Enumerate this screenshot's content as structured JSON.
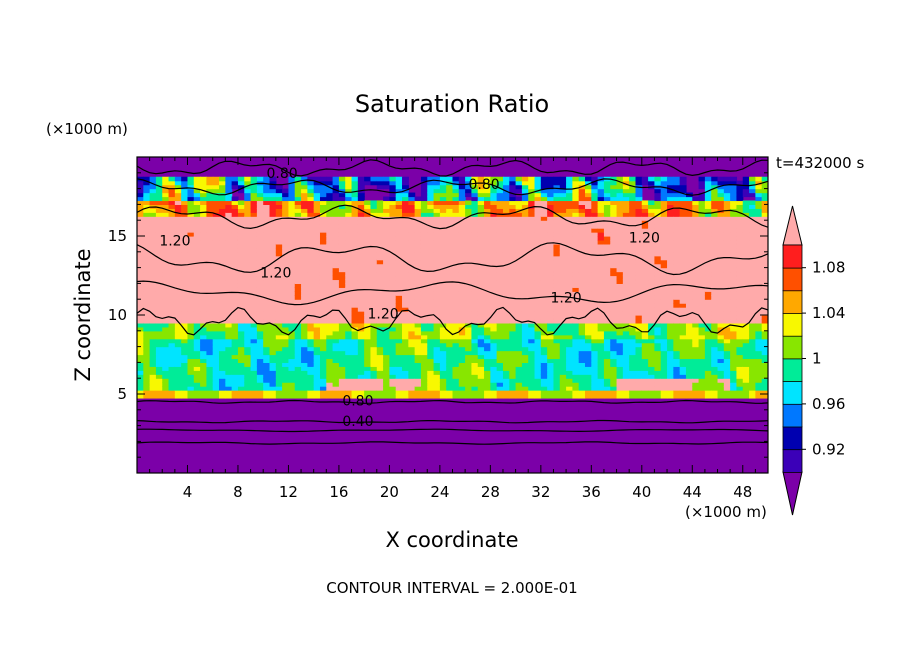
{
  "chart_data": {
    "type": "heatmap",
    "title": "Saturation Ratio",
    "xlabel": "X coordinate",
    "ylabel": "Z coordinate",
    "x_unit": "(×1000 m)",
    "y_unit": "(×1000 m)",
    "time_label": "t=432000 s",
    "footer": "CONTOUR INTERVAL = 2.000E-01",
    "xlim": [
      0,
      50
    ],
    "ylim": [
      0,
      20
    ],
    "x_ticks": [
      4,
      8,
      12,
      16,
      20,
      24,
      28,
      32,
      36,
      40,
      44,
      48
    ],
    "y_ticks": [
      5,
      10,
      15
    ],
    "colorbar": {
      "labels": [
        "0.92",
        "0.96",
        "1",
        "1.04",
        "1.08"
      ],
      "label_values": [
        0.92,
        0.96,
        1.0,
        1.04,
        1.08
      ],
      "levels": [
        0.9,
        0.92,
        0.94,
        0.96,
        0.98,
        1.0,
        1.02,
        1.04,
        1.06,
        1.08,
        1.1
      ],
      "colors": [
        "#7b00a8",
        "#3b00b8",
        "#0000b0",
        "#0078ff",
        "#00e4ff",
        "#00ec98",
        "#88e600",
        "#f8f800",
        "#ffa800",
        "#ff5000",
        "#ff1e1e",
        "#ffaaaa"
      ]
    },
    "contour_labels": [
      {
        "text": "0.80",
        "x": 11.5,
        "z": 19.0
      },
      {
        "text": "0.80",
        "x": 27.5,
        "z": 18.3
      },
      {
        "text": "1.20",
        "x": 3.0,
        "z": 14.7
      },
      {
        "text": "1.20",
        "x": 40.2,
        "z": 14.9
      },
      {
        "text": "1.20",
        "x": 11.0,
        "z": 12.7
      },
      {
        "text": "1.20",
        "x": 19.5,
        "z": 10.1
      },
      {
        "text": "1.20",
        "x": 34.0,
        "z": 11.1
      },
      {
        "text": "0.80",
        "x": 17.5,
        "z": 4.6
      },
      {
        "text": "0.40",
        "x": 17.5,
        "z": 3.3
      }
    ]
  }
}
